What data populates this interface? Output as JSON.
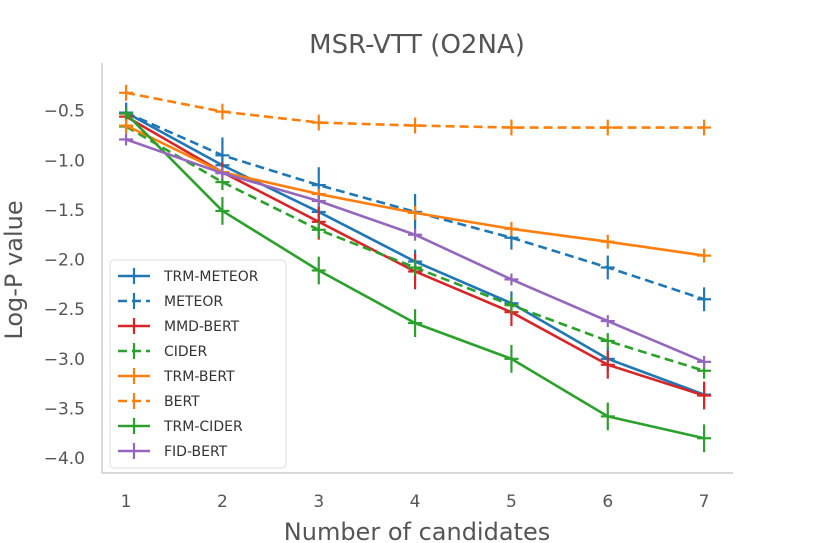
{
  "chart_data": {
    "type": "line",
    "title": "MSR-VTT (O2NA)",
    "xlabel": "Number of candidates",
    "ylabel": "Log-P value",
    "x": [
      1,
      2,
      3,
      4,
      5,
      6,
      7
    ],
    "xlim": [
      0.75,
      7.3
    ],
    "ylim": [
      -4.15,
      -0.02
    ],
    "xticks": [
      "1",
      "2",
      "3",
      "4",
      "5",
      "6",
      "7"
    ],
    "yticks": [
      {
        "value": -0.5,
        "label": "−0.5"
      },
      {
        "value": -1.0,
        "label": "−1.0"
      },
      {
        "value": -1.5,
        "label": "−1.5"
      },
      {
        "value": -2.0,
        "label": "−2.0"
      },
      {
        "value": -2.5,
        "label": "−2.5"
      },
      {
        "value": -3.0,
        "label": "−3.0"
      },
      {
        "value": -3.5,
        "label": "−3.5"
      },
      {
        "value": -4.0,
        "label": "−4.0"
      }
    ],
    "grid": false,
    "legend_position": "bottom-left",
    "series": [
      {
        "name": "TRM-METEOR",
        "color": "#1f77b4",
        "dash": "solid",
        "values": [
          -0.52,
          -1.05,
          -1.52,
          -2.02,
          -2.44,
          -3.0,
          -3.36
        ],
        "errors": [
          0.1,
          0.1,
          0.12,
          0.12,
          0.12,
          0.12,
          0.12
        ]
      },
      {
        "name": "METEOR",
        "color": "#1f77b4",
        "dash": "dashed",
        "values": [
          -0.52,
          -0.95,
          -1.25,
          -1.52,
          -1.78,
          -2.08,
          -2.4
        ],
        "errors": [
          0.1,
          0.18,
          0.18,
          0.18,
          0.12,
          0.12,
          0.12
        ]
      },
      {
        "name": "MMD-BERT",
        "color": "#d62728",
        "dash": "solid",
        "values": [
          -0.56,
          -1.12,
          -1.62,
          -2.12,
          -2.53,
          -3.06,
          -3.37
        ],
        "errors": [
          0.06,
          0.1,
          0.18,
          0.18,
          0.14,
          0.14,
          0.14
        ]
      },
      {
        "name": "CIDER",
        "color": "#2ca02c",
        "dash": "dashed",
        "values": [
          -0.66,
          -1.22,
          -1.7,
          -2.08,
          -2.46,
          -2.82,
          -3.12
        ],
        "errors": [
          0.06,
          0.08,
          0.08,
          0.08,
          0.08,
          0.08,
          0.08
        ]
      },
      {
        "name": "TRM-BERT",
        "color": "#ff7f0e",
        "dash": "solid",
        "values": [
          -0.65,
          -1.12,
          -1.34,
          -1.53,
          -1.69,
          -1.82,
          -1.96
        ],
        "errors": [
          0.08,
          0.05,
          0.05,
          0.07,
          0.07,
          0.07,
          0.07
        ]
      },
      {
        "name": "BERT",
        "color": "#ff7f0e",
        "dash": "dashed",
        "values": [
          -0.32,
          -0.51,
          -0.62,
          -0.65,
          -0.67,
          -0.67,
          -0.67
        ],
        "errors": [
          0.08,
          0.08,
          0.08,
          0.08,
          0.08,
          0.08,
          0.08
        ]
      },
      {
        "name": "TRM-CIDER",
        "color": "#2ca02c",
        "dash": "solid",
        "values": [
          -0.53,
          -1.51,
          -2.11,
          -2.64,
          -3.0,
          -3.58,
          -3.8
        ],
        "errors": [
          0.06,
          0.14,
          0.14,
          0.14,
          0.14,
          0.14,
          0.14
        ]
      },
      {
        "name": "FID-BERT",
        "color": "#9467bd",
        "dash": "solid",
        "values": [
          -0.79,
          -1.13,
          -1.41,
          -1.75,
          -2.2,
          -2.62,
          -3.03
        ],
        "errors": [
          0.06,
          0.06,
          0.06,
          0.06,
          0.06,
          0.06,
          0.06
        ]
      }
    ]
  }
}
